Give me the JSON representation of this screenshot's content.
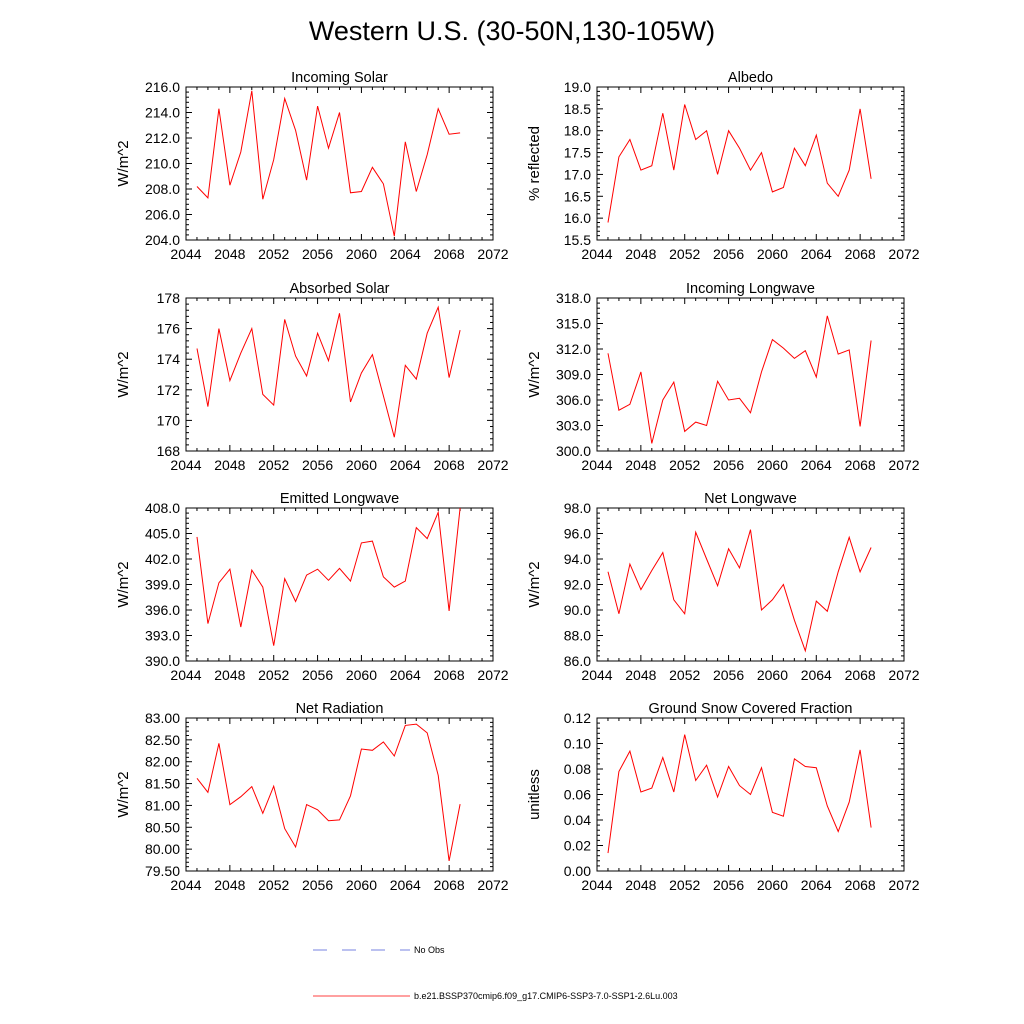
{
  "title": "Western U.S. (30-50N,130-105W)",
  "legend": {
    "obs_label": "No Obs",
    "obs_color": "#4b5bd6",
    "model_label": "b.e21.BSSP370cmip6.f09_g17.CMIP6-SSP3-7.0-SSP1-2.6Lu.003",
    "model_color": "#ff0000"
  },
  "chart_data": [
    {
      "type": "line",
      "title": "Incoming Solar",
      "ylabel": "W/m^2",
      "xlim": [
        2044,
        2072
      ],
      "ylim": [
        204.0,
        216.0
      ],
      "xticks": [
        "2044",
        "2048",
        "2052",
        "2056",
        "2060",
        "2064",
        "2068",
        "2072"
      ],
      "yticks": [
        "204.0",
        "206.0",
        "208.0",
        "210.0",
        "212.0",
        "214.0",
        "216.0"
      ],
      "x": [
        2045,
        2046,
        2047,
        2048,
        2049,
        2050,
        2051,
        2052,
        2053,
        2054,
        2055,
        2056,
        2057,
        2058,
        2059,
        2060,
        2061,
        2062,
        2063,
        2064,
        2065,
        2066,
        2067,
        2068,
        2069
      ],
      "series": [
        {
          "values": [
            208.2,
            207.3,
            214.3,
            208.3,
            210.9,
            215.7,
            207.2,
            210.3,
            215.1,
            212.6,
            208.7,
            214.5,
            211.2,
            214.0,
            207.7,
            207.8,
            209.7,
            208.4,
            204.3,
            211.7,
            207.8,
            210.7,
            214.3,
            212.3,
            212.4
          ]
        }
      ]
    },
    {
      "type": "line",
      "title": "Albedo",
      "ylabel": "% reflected",
      "xlim": [
        2044,
        2072
      ],
      "ylim": [
        15.5,
        19.0
      ],
      "xticks": [
        "2044",
        "2048",
        "2052",
        "2056",
        "2060",
        "2064",
        "2068",
        "2072"
      ],
      "yticks": [
        "15.5",
        "16.0",
        "16.5",
        "17.0",
        "17.5",
        "18.0",
        "18.5",
        "19.0"
      ],
      "x": [
        2045,
        2046,
        2047,
        2048,
        2049,
        2050,
        2051,
        2052,
        2053,
        2054,
        2055,
        2056,
        2057,
        2058,
        2059,
        2060,
        2061,
        2062,
        2063,
        2064,
        2065,
        2066,
        2067,
        2068,
        2069
      ],
      "series": [
        {
          "values": [
            15.9,
            17.4,
            17.8,
            17.1,
            17.2,
            18.4,
            17.1,
            18.6,
            17.8,
            18.0,
            17.0,
            18.0,
            17.6,
            17.1,
            17.5,
            16.6,
            16.7,
            17.6,
            17.2,
            17.9,
            16.8,
            16.5,
            17.1,
            18.5,
            16.9
          ]
        }
      ]
    },
    {
      "type": "line",
      "title": "Absorbed Solar",
      "ylabel": "W/m^2",
      "xlim": [
        2044,
        2072
      ],
      "ylim": [
        168,
        178
      ],
      "xticks": [
        "2044",
        "2048",
        "2052",
        "2056",
        "2060",
        "2064",
        "2068",
        "2072"
      ],
      "yticks": [
        "168",
        "170",
        "172",
        "174",
        "176",
        "178"
      ],
      "x": [
        2045,
        2046,
        2047,
        2048,
        2049,
        2050,
        2051,
        2052,
        2053,
        2054,
        2055,
        2056,
        2057,
        2058,
        2059,
        2060,
        2061,
        2062,
        2063,
        2064,
        2065,
        2066,
        2067,
        2068,
        2069
      ],
      "series": [
        {
          "values": [
            174.7,
            170.9,
            176.0,
            172.6,
            174.4,
            176.0,
            171.7,
            171.0,
            176.6,
            174.2,
            172.9,
            175.7,
            173.9,
            177.0,
            171.2,
            173.1,
            174.3,
            171.6,
            168.9,
            173.6,
            172.7,
            175.7,
            177.4,
            172.8,
            175.9
          ]
        }
      ]
    },
    {
      "type": "line",
      "title": "Incoming Longwave",
      "ylabel": "W/m^2",
      "xlim": [
        2044,
        2072
      ],
      "ylim": [
        300.0,
        318.0
      ],
      "xticks": [
        "2044",
        "2048",
        "2052",
        "2056",
        "2060",
        "2064",
        "2068",
        "2072"
      ],
      "yticks": [
        "300.0",
        "303.0",
        "306.0",
        "309.0",
        "312.0",
        "315.0",
        "318.0"
      ],
      "x": [
        2045,
        2046,
        2047,
        2048,
        2049,
        2050,
        2051,
        2052,
        2053,
        2054,
        2055,
        2056,
        2057,
        2058,
        2059,
        2060,
        2061,
        2062,
        2063,
        2064,
        2065,
        2066,
        2067,
        2068,
        2069
      ],
      "series": [
        {
          "values": [
            311.5,
            304.8,
            305.5,
            309.3,
            300.9,
            306.0,
            308.1,
            302.3,
            303.4,
            303.0,
            308.2,
            306.0,
            306.2,
            304.5,
            309.3,
            313.1,
            312.1,
            310.9,
            311.8,
            308.7,
            315.9,
            311.4,
            311.9,
            302.9,
            313.0
          ]
        }
      ]
    },
    {
      "type": "line",
      "title": "Emitted Longwave",
      "ylabel": "W/m^2",
      "xlim": [
        2044,
        2072
      ],
      "ylim": [
        390.0,
        408.0
      ],
      "xticks": [
        "2044",
        "2048",
        "2052",
        "2056",
        "2060",
        "2064",
        "2068",
        "2072"
      ],
      "yticks": [
        "390.0",
        "393.0",
        "396.0",
        "399.0",
        "402.0",
        "405.0",
        "408.0"
      ],
      "x": [
        2045,
        2046,
        2047,
        2048,
        2049,
        2050,
        2051,
        2052,
        2053,
        2054,
        2055,
        2056,
        2057,
        2058,
        2059,
        2060,
        2061,
        2062,
        2063,
        2064,
        2065,
        2066,
        2067,
        2068,
        2069
      ],
      "series": [
        {
          "values": [
            404.6,
            394.4,
            399.2,
            400.8,
            394.0,
            400.7,
            398.7,
            391.8,
            399.7,
            397.0,
            400.1,
            400.8,
            399.5,
            400.9,
            399.4,
            403.9,
            404.1,
            399.9,
            398.7,
            399.4,
            405.7,
            404.4,
            407.5,
            395.9,
            408.0
          ]
        }
      ]
    },
    {
      "type": "line",
      "title": "Net Longwave",
      "ylabel": "W/m^2",
      "xlim": [
        2044,
        2072
      ],
      "ylim": [
        86.0,
        98.0
      ],
      "xticks": [
        "2044",
        "2048",
        "2052",
        "2056",
        "2060",
        "2064",
        "2068",
        "2072"
      ],
      "yticks": [
        "86.0",
        "88.0",
        "90.0",
        "92.0",
        "94.0",
        "96.0",
        "98.0"
      ],
      "x": [
        2045,
        2046,
        2047,
        2048,
        2049,
        2050,
        2051,
        2052,
        2053,
        2054,
        2055,
        2056,
        2057,
        2058,
        2059,
        2060,
        2061,
        2062,
        2063,
        2064,
        2065,
        2066,
        2067,
        2068,
        2069
      ],
      "series": [
        {
          "values": [
            93.0,
            89.7,
            93.6,
            91.6,
            93.1,
            94.5,
            90.8,
            89.7,
            96.1,
            94.0,
            91.9,
            94.8,
            93.3,
            96.3,
            90.0,
            90.8,
            92.0,
            89.2,
            86.8,
            90.7,
            89.9,
            93.0,
            95.7,
            93.0,
            94.9
          ]
        }
      ]
    },
    {
      "type": "line",
      "title": "Net Radiation",
      "ylabel": "W/m^2",
      "xlim": [
        2044,
        2072
      ],
      "ylim": [
        79.5,
        83.0
      ],
      "xticks": [
        "2044",
        "2048",
        "2052",
        "2056",
        "2060",
        "2064",
        "2068",
        "2072"
      ],
      "yticks": [
        "79.50",
        "80.00",
        "80.50",
        "81.00",
        "81.50",
        "82.00",
        "82.50",
        "83.00"
      ],
      "x": [
        2045,
        2046,
        2047,
        2048,
        2049,
        2050,
        2051,
        2052,
        2053,
        2054,
        2055,
        2056,
        2057,
        2058,
        2059,
        2060,
        2061,
        2062,
        2063,
        2064,
        2065,
        2066,
        2067,
        2068,
        2069
      ],
      "series": [
        {
          "values": [
            81.62,
            81.3,
            82.42,
            81.02,
            81.2,
            81.43,
            80.82,
            81.44,
            80.47,
            80.05,
            81.02,
            80.9,
            80.65,
            80.67,
            81.22,
            82.29,
            82.26,
            82.45,
            82.13,
            82.83,
            82.86,
            82.66,
            81.69,
            79.73,
            81.03
          ]
        }
      ]
    },
    {
      "type": "line",
      "title": "Ground Snow Covered Fraction",
      "ylabel": "unitless",
      "xlim": [
        2044,
        2072
      ],
      "ylim": [
        0.0,
        0.12
      ],
      "xticks": [
        "2044",
        "2048",
        "2052",
        "2056",
        "2060",
        "2064",
        "2068",
        "2072"
      ],
      "yticks": [
        "0.00",
        "0.02",
        "0.04",
        "0.06",
        "0.08",
        "0.10",
        "0.12"
      ],
      "x": [
        2045,
        2046,
        2047,
        2048,
        2049,
        2050,
        2051,
        2052,
        2053,
        2054,
        2055,
        2056,
        2057,
        2058,
        2059,
        2060,
        2061,
        2062,
        2063,
        2064,
        2065,
        2066,
        2067,
        2068,
        2069
      ],
      "series": [
        {
          "values": [
            0.014,
            0.078,
            0.094,
            0.062,
            0.065,
            0.089,
            0.062,
            0.107,
            0.071,
            0.083,
            0.058,
            0.082,
            0.067,
            0.06,
            0.081,
            0.046,
            0.043,
            0.088,
            0.082,
            0.081,
            0.051,
            0.031,
            0.054,
            0.095,
            0.034
          ]
        }
      ]
    }
  ]
}
